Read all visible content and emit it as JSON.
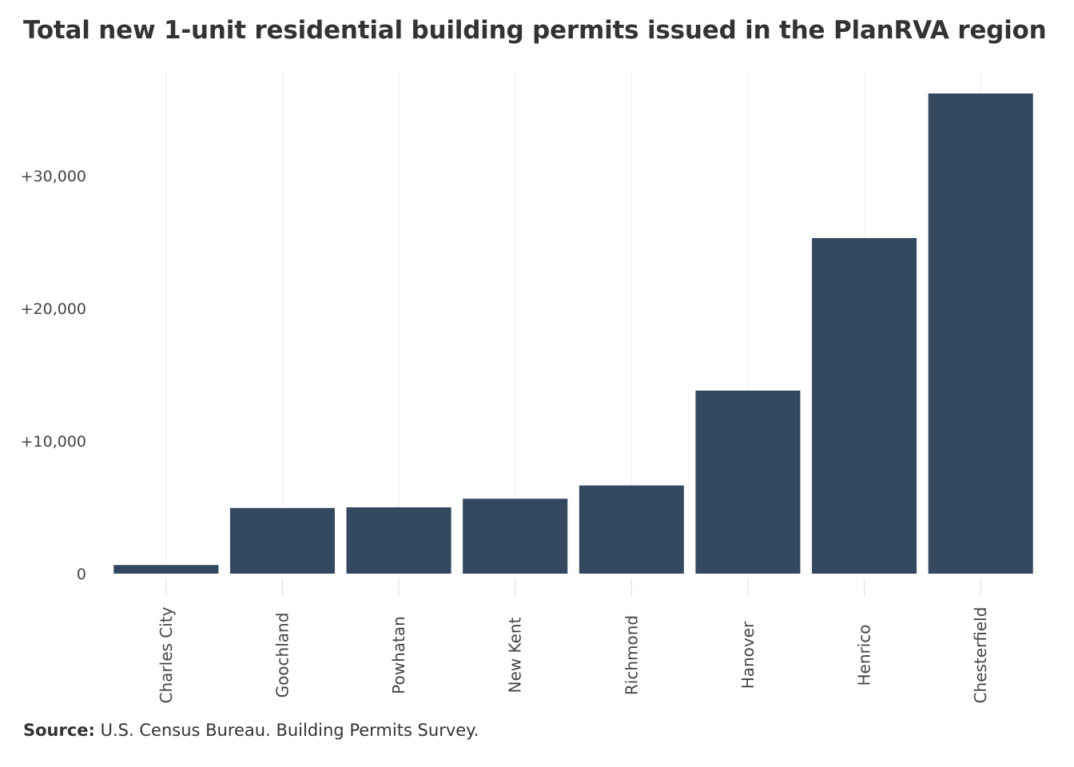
{
  "chart_data": {
    "type": "bar",
    "title": "Total new 1-unit residential building permits issued in the PlanRVA region",
    "categories": [
      "Charles City",
      "Goochland",
      "Powhatan",
      "New Kent",
      "Richmond",
      "Hanover",
      "Henrico",
      "Chesterfield"
    ],
    "values": [
      650,
      4950,
      5000,
      5650,
      6650,
      13800,
      25300,
      36200
    ],
    "y_ticks": [
      {
        "value": 0,
        "label": "0"
      },
      {
        "value": 10000,
        "label": "+10,000"
      },
      {
        "value": 20000,
        "label": "+20,000"
      },
      {
        "value": 30000,
        "label": "+30,000"
      }
    ],
    "ylim": [
      0,
      36200
    ],
    "xlabel": "",
    "ylabel": "",
    "grid": "vertical",
    "bar_color": "#34495f",
    "grid_color": "#f0f0f0",
    "tick_mark_color": "#dddddd"
  },
  "source": {
    "label": "Source:",
    "text": " U.S. Census Bureau. Building Permits Survey."
  }
}
